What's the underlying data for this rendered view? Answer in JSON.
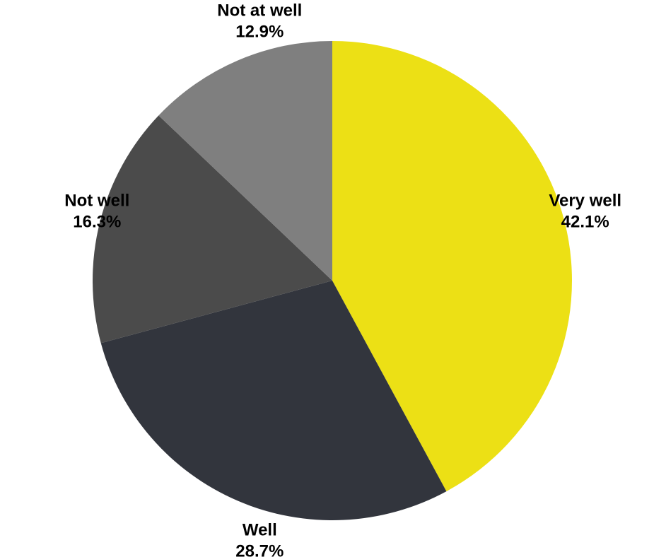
{
  "chart_data": {
    "type": "pie",
    "title": "",
    "start_angle_deg": 0,
    "direction": "clockwise",
    "slices": [
      {
        "label": "Very well",
        "value": 42.1,
        "value_label": "42.1%",
        "color": "#ece015"
      },
      {
        "label": "Well",
        "value": 28.7,
        "value_label": "28.7%",
        "color": "#32353d"
      },
      {
        "label": "Not well",
        "value": 16.3,
        "value_label": "16.3%",
        "color": "#4b4b4b"
      },
      {
        "label": "Not at well",
        "value": 12.9,
        "value_label": "12.9%",
        "color": "#7f7f7f"
      }
    ],
    "legend": "none"
  }
}
